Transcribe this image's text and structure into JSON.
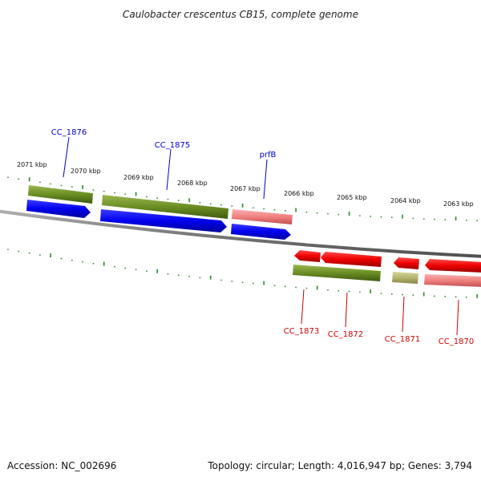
{
  "title": "Caulobacter crescentus CB15, complete genome",
  "footer": {
    "accession": "Accession: NC_002696",
    "topology": "Topology: circular; Length: 4,016,947 bp; Genes: 3,794"
  },
  "colors": {
    "forward_cds": "#0000ee",
    "reverse_cds": "#ee0000",
    "forward_gene": "#6b8e23",
    "reverse_gene": "#6b8e23",
    "pseudo_gene": "#b5b56e",
    "rna_forward": "#f08080",
    "backbone": "#808080",
    "tick": "#2e8b2e",
    "label_forward": "#0000cc",
    "label_reverse": "#cc0000"
  },
  "scale_labels": [
    "2071 kbp",
    "2070 kbp",
    "2069 kbp",
    "2068 kbp",
    "2067 kbp",
    "2066 kbp",
    "2065 kbp",
    "2064 kbp",
    "2063 kbp"
  ],
  "gene_labels_forward": [
    "CC_1876",
    "CC_1875",
    "prfB"
  ],
  "gene_labels_reverse": [
    "CC_1873",
    "CC_1872",
    "CC_1871",
    "CC_1870"
  ]
}
